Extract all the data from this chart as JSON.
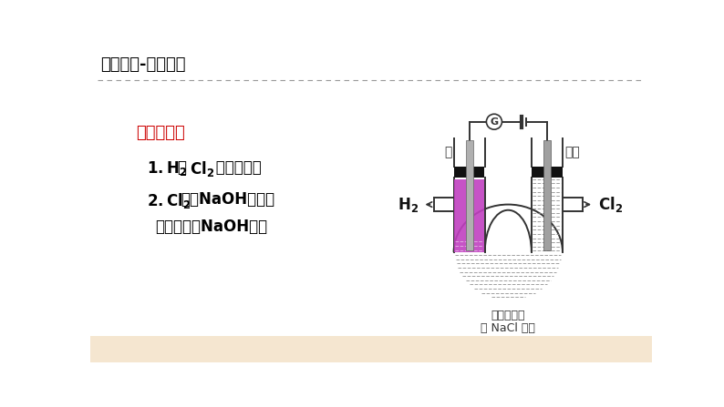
{
  "bg_color": "#ffffff",
  "title": "知识精讲-氯碱工业",
  "title_color": "#000000",
  "title_fontsize": 13,
  "divider_color": "#999999",
  "section_title": "装置缺点：",
  "section_title_color": "#cc0000",
  "section_title_fontsize": 13,
  "point_fontsize": 12,
  "point_color": "#000000",
  "electrode_left_label": "铁",
  "electrode_right_label": "石墨",
  "bottom_label_line1": "加酚酞试液",
  "bottom_label_line2": "的 NaCl 溶液",
  "purple_color": "#c040c0",
  "dash_color": "#888888",
  "tube_color": "#333333",
  "wire_color": "#333333",
  "electrode_color": "#aaaaaa",
  "collar_color": "#111111",
  "bottom_bar_color": "#f5e6d0"
}
